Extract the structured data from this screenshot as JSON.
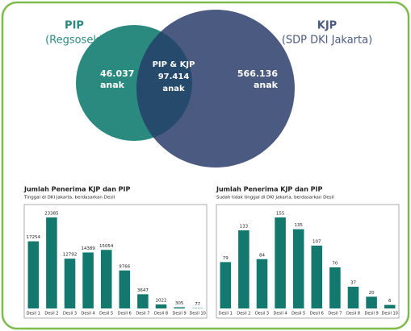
{
  "venn": {
    "left_title": "PIP",
    "left_subtitle": "(Regsosek)",
    "right_title": "KJP",
    "right_subtitle": "(SDP DKI Jakarta)",
    "left_value": "46.037",
    "left_unit": "anak",
    "overlap_title": "PIP & KJP",
    "overlap_value": "97.414",
    "overlap_unit": "anak",
    "right_value": "566.136",
    "right_unit": "anak"
  },
  "chart_data": [
    {
      "type": "bar",
      "title": "Jumlah Penerima KJP dan PIP",
      "subtitle": "Tinggal di DKI Jakarta, berdasarkan Desil",
      "categories": [
        "Desil 1",
        "Desil 2",
        "Desil 3",
        "Desil 4",
        "Desil 5",
        "Desil 6",
        "Desil 7",
        "Desil 8",
        "Desil 9",
        "Desil 10"
      ],
      "values": [
        17254,
        23385,
        12792,
        14389,
        15054,
        9766,
        3647,
        1022,
        305,
        77
      ],
      "color": "#13796f"
    },
    {
      "type": "bar",
      "title": "Jumlah Penerima KJP dan PIP",
      "subtitle": "Sudah tidak tinggal di DKI Jakarta, berdasarkan Desil",
      "categories": [
        "Desil 1",
        "Desil 2",
        "Desil 3",
        "Desil 4",
        "Desil 5",
        "Desil 6",
        "Desil 7",
        "Desil 8",
        "Desil 9",
        "Desil 10"
      ],
      "values": [
        79,
        133,
        84,
        155,
        135,
        107,
        70,
        37,
        20,
        6
      ],
      "color": "#13796f"
    }
  ]
}
